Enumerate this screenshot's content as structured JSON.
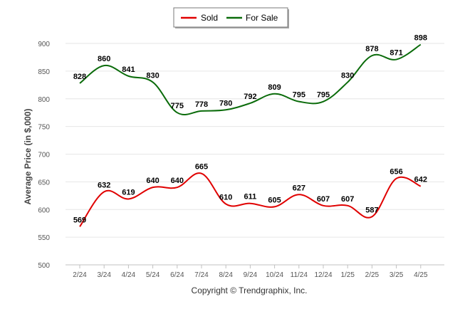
{
  "chart_data": {
    "type": "line",
    "title": "",
    "xlabel": "",
    "ylabel": "Average Price (in $,000)",
    "ylim": [
      500,
      900
    ],
    "yticks": [
      500,
      550,
      600,
      650,
      700,
      750,
      800,
      850,
      900
    ],
    "categories": [
      "2/24",
      "3/24",
      "4/24",
      "5/24",
      "6/24",
      "7/24",
      "8/24",
      "9/24",
      "10/24",
      "11/24",
      "12/24",
      "1/25",
      "2/25",
      "3/25",
      "4/25"
    ],
    "grid": true,
    "legend_position": "top-center",
    "series": [
      {
        "name": "Sold",
        "color": "#e00000",
        "values": [
          569,
          632,
          619,
          640,
          640,
          665,
          610,
          611,
          605,
          627,
          607,
          607,
          587,
          656,
          642
        ]
      },
      {
        "name": "For Sale",
        "color": "#0a6b0a",
        "values": [
          828,
          860,
          841,
          830,
          775,
          778,
          780,
          792,
          809,
          795,
          795,
          830,
          878,
          871,
          898
        ]
      }
    ]
  },
  "footer": {
    "copyright": "Copyright © Trendgraphix, Inc."
  }
}
